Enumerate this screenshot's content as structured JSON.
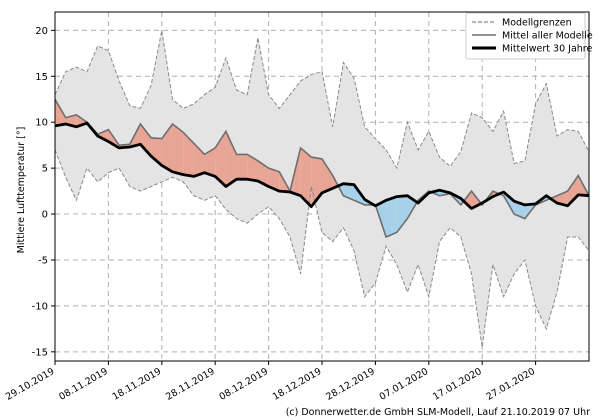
{
  "chart_data": {
    "type": "area",
    "ylabel": "Mittlere Lufttemperatur [°]",
    "xlabel": "",
    "ylim": [
      -16,
      22
    ],
    "yticks": [
      -15,
      -10,
      -5,
      0,
      5,
      10,
      15,
      20
    ],
    "xlim": [
      "2019-10-29",
      "2020-02-06"
    ],
    "xticks": [
      "2019-10-29",
      "2019-11-08",
      "2019-11-18",
      "2019-11-28",
      "2019-12-08",
      "2019-12-18",
      "2019-12-28",
      "2020-01-07",
      "2020-01-17",
      "2020-01-27"
    ],
    "xtick_labels": [
      "29.10.2019",
      "08.11.2019",
      "18.11.2019",
      "28.11.2019",
      "08.12.2019",
      "18.12.2019",
      "28.12.2019",
      "07.01.2020",
      "17.01.2020",
      "27.01.2020"
    ],
    "grid": true,
    "legend_position": "top-right",
    "legend": [
      "Modellgrenzen",
      "Mittel aller Modelle",
      "Mittelwert 30 Jahre"
    ],
    "colors": {
      "envelope_fill": "#e4e4e4",
      "envelope_line": "#8a8a8a",
      "warm_fill": "#e8a595",
      "warm_fill_light": "#fbd0c8",
      "cold_fill": "#a7d1e9",
      "model_mean_line": "#6e6e6e",
      "climate_line": "#000000"
    },
    "series": [
      {
        "name": "Modellgrenzen (oben)",
        "x": [
          "2019-10-29",
          "2019-10-31",
          "2019-11-02",
          "2019-11-04",
          "2019-11-06",
          "2019-11-08",
          "2019-11-10",
          "2019-11-12",
          "2019-11-14",
          "2019-11-16",
          "2019-11-18",
          "2019-11-20",
          "2019-11-22",
          "2019-11-24",
          "2019-11-26",
          "2019-11-28",
          "2019-11-30",
          "2019-12-02",
          "2019-12-04",
          "2019-12-06",
          "2019-12-08",
          "2019-12-10",
          "2019-12-12",
          "2019-12-14",
          "2019-12-16",
          "2019-12-18",
          "2019-12-20",
          "2019-12-22",
          "2019-12-24",
          "2019-12-26",
          "2019-12-28",
          "2019-12-30",
          "2020-01-01",
          "2020-01-03",
          "2020-01-05",
          "2020-01-07",
          "2020-01-09",
          "2020-01-11",
          "2020-01-13",
          "2020-01-15",
          "2020-01-17",
          "2020-01-19",
          "2020-01-21",
          "2020-01-23",
          "2020-01-25",
          "2020-01-27",
          "2020-01-29",
          "2020-01-31",
          "2020-02-02",
          "2020-02-04",
          "2020-02-06"
        ],
        "values": [
          13.0,
          15.5,
          16.0,
          15.5,
          18.3,
          17.8,
          14.5,
          11.8,
          11.5,
          14.0,
          20.0,
          12.5,
          11.5,
          12.0,
          13.0,
          13.8,
          17.0,
          13.5,
          13.0,
          19.2,
          13.0,
          11.5,
          13.0,
          14.5,
          15.2,
          15.5,
          9.5,
          16.5,
          14.8,
          9.5,
          8.2,
          7.0,
          5.0,
          10.0,
          7.0,
          9.0,
          6.2,
          5.2,
          6.8,
          11.0,
          10.5,
          9.0,
          11.2,
          5.5,
          5.8,
          12.0,
          14.2,
          8.5,
          9.2,
          9.0,
          6.8
        ]
      },
      {
        "name": "Modellgrenzen (unten)",
        "x": [
          "2019-10-29",
          "2019-10-31",
          "2019-11-02",
          "2019-11-04",
          "2019-11-06",
          "2019-11-08",
          "2019-11-10",
          "2019-11-12",
          "2019-11-14",
          "2019-11-16",
          "2019-11-18",
          "2019-11-20",
          "2019-11-22",
          "2019-11-24",
          "2019-11-26",
          "2019-11-28",
          "2019-11-30",
          "2019-12-02",
          "2019-12-04",
          "2019-12-06",
          "2019-12-08",
          "2019-12-10",
          "2019-12-12",
          "2019-12-14",
          "2019-12-16",
          "2019-12-18",
          "2019-12-20",
          "2019-12-22",
          "2019-12-24",
          "2019-12-26",
          "2019-12-28",
          "2019-12-30",
          "2020-01-01",
          "2020-01-03",
          "2020-01-05",
          "2020-01-07",
          "2020-01-09",
          "2020-01-11",
          "2020-01-13",
          "2020-01-15",
          "2020-01-17",
          "2020-01-19",
          "2020-01-21",
          "2020-01-23",
          "2020-01-25",
          "2020-01-27",
          "2020-01-29",
          "2020-01-31",
          "2020-02-02",
          "2020-02-04",
          "2020-02-06"
        ],
        "values": [
          7.0,
          4.0,
          1.5,
          5.0,
          3.5,
          4.5,
          5.0,
          3.0,
          2.5,
          3.0,
          3.5,
          4.0,
          3.5,
          2.0,
          1.5,
          2.0,
          0.5,
          -0.5,
          -1.0,
          0.0,
          0.8,
          -0.5,
          -2.5,
          -6.5,
          3.0,
          -2.0,
          -3.0,
          -1.5,
          -4.0,
          -9.0,
          -7.5,
          -3.5,
          -5.5,
          -8.5,
          -5.5,
          -9.0,
          -3.0,
          -1.5,
          -2.5,
          -6.5,
          -14.5,
          -5.5,
          -9.0,
          -6.5,
          -5.0,
          -10.0,
          -12.5,
          -8.5,
          -2.5,
          -2.5,
          -4.0
        ]
      },
      {
        "name": "Mittel aller Modelle",
        "x": [
          "2019-10-29",
          "2019-10-31",
          "2019-11-02",
          "2019-11-04",
          "2019-11-06",
          "2019-11-08",
          "2019-11-10",
          "2019-11-12",
          "2019-11-14",
          "2019-11-16",
          "2019-11-18",
          "2019-11-20",
          "2019-11-22",
          "2019-11-24",
          "2019-11-26",
          "2019-11-28",
          "2019-11-30",
          "2019-12-02",
          "2019-12-04",
          "2019-12-06",
          "2019-12-08",
          "2019-12-10",
          "2019-12-12",
          "2019-12-14",
          "2019-12-16",
          "2019-12-18",
          "2019-12-20",
          "2019-12-22",
          "2019-12-24",
          "2019-12-26",
          "2019-12-28",
          "2019-12-30",
          "2020-01-01",
          "2020-01-03",
          "2020-01-05",
          "2020-01-07",
          "2020-01-09",
          "2020-01-11",
          "2020-01-13",
          "2020-01-15",
          "2020-01-17",
          "2020-01-19",
          "2020-01-21",
          "2020-01-23",
          "2020-01-25",
          "2020-01-27",
          "2020-01-29",
          "2020-01-31",
          "2020-02-02",
          "2020-02-04",
          "2020-02-06"
        ],
        "values": [
          12.5,
          10.5,
          10.8,
          10.0,
          8.7,
          9.2,
          7.5,
          7.6,
          9.8,
          8.3,
          8.2,
          9.8,
          8.9,
          7.7,
          6.5,
          7.2,
          9.0,
          6.5,
          6.5,
          5.8,
          5.0,
          4.6,
          2.5,
          7.2,
          6.2,
          6.0,
          4.2,
          2.0,
          1.5,
          1.0,
          1.0,
          -2.5,
          -2.0,
          -0.5,
          1.5,
          2.5,
          2.0,
          2.2,
          1.0,
          2.5,
          1.0,
          2.5,
          2.0,
          0.0,
          -0.5,
          1.0,
          1.5,
          2.0,
          2.5,
          4.2,
          2.0
        ]
      },
      {
        "name": "Mittelwert 30 Jahre",
        "x": [
          "2019-10-29",
          "2019-10-31",
          "2019-11-02",
          "2019-11-04",
          "2019-11-06",
          "2019-11-08",
          "2019-11-10",
          "2019-11-12",
          "2019-11-14",
          "2019-11-16",
          "2019-11-18",
          "2019-11-20",
          "2019-11-22",
          "2019-11-24",
          "2019-11-26",
          "2019-11-28",
          "2019-11-30",
          "2019-12-02",
          "2019-12-04",
          "2019-12-06",
          "2019-12-08",
          "2019-12-10",
          "2019-12-12",
          "2019-12-14",
          "2019-12-16",
          "2019-12-18",
          "2019-12-20",
          "2019-12-22",
          "2019-12-24",
          "2019-12-26",
          "2019-12-28",
          "2019-12-30",
          "2020-01-01",
          "2020-01-03",
          "2020-01-05",
          "2020-01-07",
          "2020-01-09",
          "2020-01-11",
          "2020-01-13",
          "2020-01-15",
          "2020-01-17",
          "2020-01-19",
          "2020-01-21",
          "2020-01-23",
          "2020-01-25",
          "2020-01-27",
          "2020-01-29",
          "2020-01-31",
          "2020-02-02",
          "2020-02-04",
          "2020-02-06"
        ],
        "values": [
          9.6,
          9.8,
          9.5,
          9.9,
          8.5,
          7.9,
          7.2,
          7.3,
          7.6,
          6.3,
          5.3,
          4.6,
          4.3,
          4.1,
          4.5,
          4.1,
          3.0,
          3.8,
          3.8,
          3.6,
          3.0,
          2.5,
          2.4,
          2.0,
          0.8,
          2.3,
          2.8,
          3.3,
          3.2,
          1.6,
          0.9,
          1.5,
          1.9,
          2.0,
          1.2,
          2.3,
          2.6,
          2.3,
          1.7,
          0.6,
          1.2,
          1.9,
          2.4,
          1.4,
          1.0,
          1.1,
          2.0,
          1.2,
          0.9,
          2.1,
          2.0
        ]
      }
    ]
  },
  "footer": {
    "credit": "(c) Donnerwetter.de GmbH SLM-Modell, Lauf 21.10.2019 07 Uhr"
  }
}
